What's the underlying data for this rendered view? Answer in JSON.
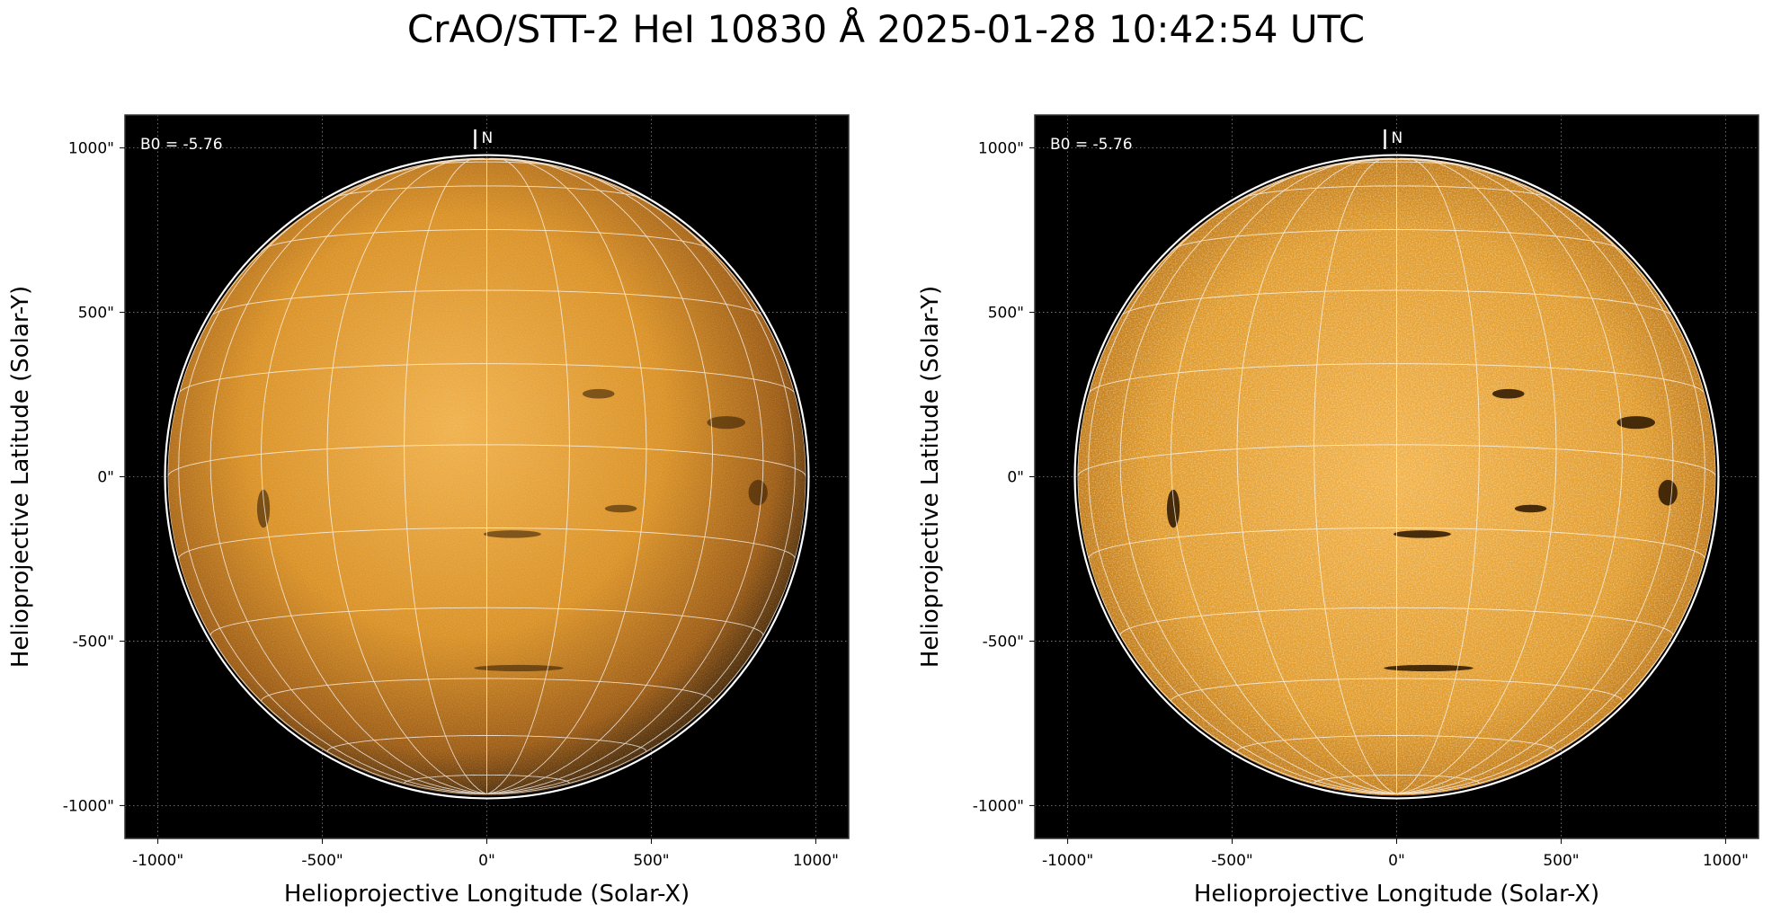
{
  "title": "CrAO/STT-2 HeI 10830 Å 2025-01-28 10:42:54 UTC",
  "colors": {
    "background": "#000000",
    "sun_mid": "#e09a2a",
    "sun_edge": "#6a3c08",
    "grid": "#ffffff"
  },
  "panels": [
    {
      "name": "left-panel",
      "b0_label": "B0 = -5.76",
      "north_label": "N",
      "xlabel": "Helioprojective Longitude (Solar-X)",
      "ylabel": "Helioprojective Latitude (Solar-Y)",
      "x_ticks": [
        "-1000\"",
        "-500\"",
        "0\"",
        "500\"",
        "1000\""
      ],
      "y_ticks": [
        "1000\"",
        "500\"",
        "0\"",
        "-500\"",
        "-1000\""
      ],
      "x_tick_values": [
        -1000,
        -500,
        0,
        500,
        1000
      ],
      "y_tick_values": [
        1000,
        500,
        0,
        -500,
        -1000
      ],
      "x_range": [
        -1100,
        1100
      ],
      "y_range": [
        -1100,
        1100
      ],
      "solar_radius_arcsec": 970,
      "contrast": "normal"
    },
    {
      "name": "right-panel",
      "b0_label": "B0 = -5.76",
      "north_label": "N",
      "xlabel": "Helioprojective Longitude (Solar-X)",
      "ylabel": "Helioprojective Latitude (Solar-Y)",
      "x_ticks": [
        "-1000\"",
        "-500\"",
        "0\"",
        "500\"",
        "1000\""
      ],
      "y_ticks": [
        "1000\"",
        "500\"",
        "0\"",
        "-500\"",
        "-1000\""
      ],
      "x_tick_values": [
        -1000,
        -500,
        0,
        500,
        1000
      ],
      "y_tick_values": [
        1000,
        500,
        0,
        -500,
        -1000
      ],
      "x_range": [
        -1100,
        1100
      ],
      "y_range": [
        -1100,
        1100
      ],
      "solar_radius_arcsec": 970,
      "contrast": "enhanced"
    }
  ]
}
